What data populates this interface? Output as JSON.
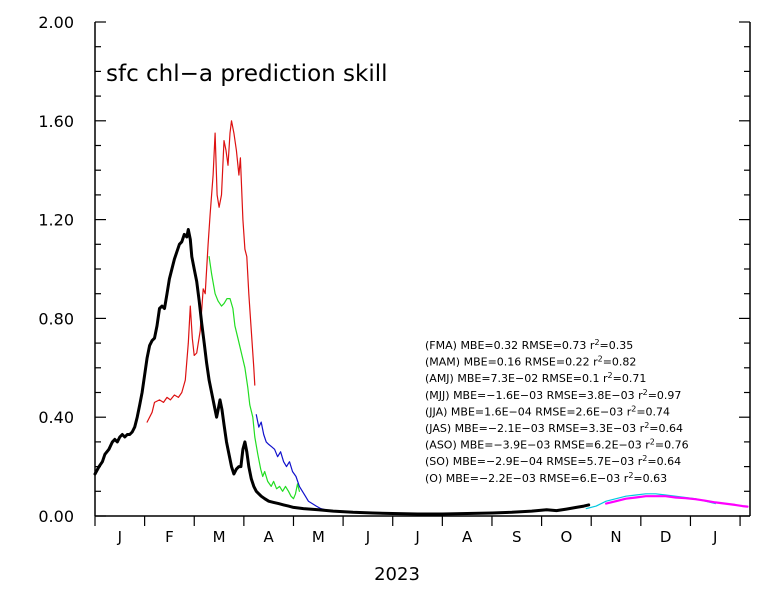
{
  "chart_data": {
    "type": "line",
    "title": "sfc chl−a prediction skill",
    "xlabel": "2023",
    "ylabel": "",
    "ylim": [
      0,
      2
    ],
    "yticks": [
      "0.00",
      "0.40",
      "0.80",
      "1.20",
      "1.60",
      "2.00"
    ],
    "xlim": [
      0,
      13.2
    ],
    "month_labels": [
      "J",
      "F",
      "M",
      "A",
      "M",
      "J",
      "J",
      "A",
      "S",
      "O",
      "N",
      "D",
      "J"
    ],
    "grid": false,
    "stats": [
      {
        "period": "(FMA)",
        "mbe": "MBE=0.32",
        "rmse": "RMSE=0.73",
        "r2": "=0.35"
      },
      {
        "period": "(MAM)",
        "mbe": "MBE=0.16",
        "rmse": "RMSE=0.22",
        "r2": "=0.82"
      },
      {
        "period": "(AMJ)",
        "mbe": "MBE=7.3E−02",
        "rmse": "RMSE=0.1",
        "r2": "=0.71"
      },
      {
        "period": "(MJJ)",
        "mbe": "MBE=−1.6E−03",
        "rmse": "RMSE=3.8E−03",
        "r2": "=0.97"
      },
      {
        "period": "(JJA)",
        "mbe": "MBE=1.6E−04",
        "rmse": "RMSE=2.6E−03",
        "r2": "=0.74"
      },
      {
        "period": "(JAS)",
        "mbe": "MBE=−2.1E−03",
        "rmse": "RMSE=3.3E−03",
        "r2": "=0.64"
      },
      {
        "period": "(ASO)",
        "mbe": "MBE=−3.9E−03",
        "rmse": "RMSE=6.2E−03",
        "r2": "=0.76"
      },
      {
        "period": "(SO)",
        "mbe": "MBE=−2.9E−04",
        "rmse": "RMSE=5.7E−03",
        "r2": "=0.64"
      },
      {
        "period": "(O)",
        "mbe": "MBE=−2.2E−03",
        "rmse": "RMSE=6.E−03",
        "r2": "=0.63"
      }
    ],
    "series": [
      {
        "color": "#dd1111",
        "width": 1.2,
        "points": [
          [
            1.05,
            0.38
          ],
          [
            1.15,
            0.42
          ],
          [
            1.2,
            0.46
          ],
          [
            1.3,
            0.47
          ],
          [
            1.38,
            0.46
          ],
          [
            1.45,
            0.48
          ],
          [
            1.52,
            0.47
          ],
          [
            1.6,
            0.49
          ],
          [
            1.68,
            0.48
          ],
          [
            1.75,
            0.5
          ],
          [
            1.82,
            0.55
          ],
          [
            1.88,
            0.7
          ],
          [
            1.92,
            0.85
          ],
          [
            1.96,
            0.72
          ],
          [
            2.0,
            0.65
          ],
          [
            2.05,
            0.66
          ],
          [
            2.12,
            0.75
          ],
          [
            2.18,
            0.92
          ],
          [
            2.22,
            0.9
          ],
          [
            2.28,
            1.1
          ],
          [
            2.32,
            1.22
          ],
          [
            2.38,
            1.38
          ],
          [
            2.42,
            1.55
          ],
          [
            2.46,
            1.3
          ],
          [
            2.5,
            1.25
          ],
          [
            2.55,
            1.3
          ],
          [
            2.6,
            1.52
          ],
          [
            2.64,
            1.48
          ],
          [
            2.68,
            1.42
          ],
          [
            2.72,
            1.55
          ],
          [
            2.75,
            1.6
          ],
          [
            2.8,
            1.55
          ],
          [
            2.85,
            1.48
          ],
          [
            2.9,
            1.38
          ],
          [
            2.93,
            1.45
          ],
          [
            2.98,
            1.2
          ],
          [
            3.02,
            1.08
          ],
          [
            3.06,
            1.05
          ],
          [
            3.1,
            0.9
          ],
          [
            3.15,
            0.75
          ],
          [
            3.2,
            0.6
          ],
          [
            3.22,
            0.53
          ]
        ]
      },
      {
        "color": "#22dd22",
        "width": 1.2,
        "points": [
          [
            2.3,
            1.05
          ],
          [
            2.35,
            0.98
          ],
          [
            2.42,
            0.9
          ],
          [
            2.48,
            0.87
          ],
          [
            2.55,
            0.85
          ],
          [
            2.6,
            0.86
          ],
          [
            2.66,
            0.88
          ],
          [
            2.72,
            0.88
          ],
          [
            2.78,
            0.84
          ],
          [
            2.82,
            0.77
          ],
          [
            2.88,
            0.72
          ],
          [
            2.95,
            0.66
          ],
          [
            3.02,
            0.6
          ],
          [
            3.08,
            0.52
          ],
          [
            3.12,
            0.45
          ],
          [
            3.18,
            0.4
          ],
          [
            3.22,
            0.32
          ],
          [
            3.28,
            0.25
          ],
          [
            3.34,
            0.19
          ],
          [
            3.38,
            0.16
          ],
          [
            3.42,
            0.18
          ],
          [
            3.48,
            0.14
          ],
          [
            3.55,
            0.12
          ],
          [
            3.6,
            0.14
          ],
          [
            3.66,
            0.11
          ],
          [
            3.72,
            0.12
          ],
          [
            3.78,
            0.1
          ],
          [
            3.84,
            0.12
          ],
          [
            3.9,
            0.1
          ],
          [
            3.95,
            0.08
          ],
          [
            4.0,
            0.07
          ],
          [
            4.04,
            0.09
          ],
          [
            4.08,
            0.13
          ],
          [
            4.12,
            0.1
          ]
        ]
      },
      {
        "color": "#1111cc",
        "width": 1.2,
        "points": [
          [
            3.25,
            0.41
          ],
          [
            3.3,
            0.36
          ],
          [
            3.35,
            0.38
          ],
          [
            3.4,
            0.33
          ],
          [
            3.45,
            0.3
          ],
          [
            3.5,
            0.29
          ],
          [
            3.56,
            0.28
          ],
          [
            3.62,
            0.27
          ],
          [
            3.68,
            0.24
          ],
          [
            3.74,
            0.26
          ],
          [
            3.8,
            0.22
          ],
          [
            3.86,
            0.2
          ],
          [
            3.92,
            0.22
          ],
          [
            3.98,
            0.18
          ],
          [
            4.05,
            0.16
          ],
          [
            4.12,
            0.12
          ],
          [
            4.18,
            0.1
          ],
          [
            4.24,
            0.08
          ],
          [
            4.3,
            0.06
          ],
          [
            4.38,
            0.05
          ],
          [
            4.46,
            0.04
          ],
          [
            4.55,
            0.03
          ],
          [
            4.65,
            0.025
          ],
          [
            4.8,
            0.02
          ],
          [
            5.0,
            0.015
          ]
        ]
      },
      {
        "color": "#00c8e0",
        "width": 1.2,
        "points": [
          [
            9.9,
            0.03
          ],
          [
            10.1,
            0.04
          ],
          [
            10.3,
            0.06
          ],
          [
            10.5,
            0.07
          ],
          [
            10.7,
            0.08
          ],
          [
            10.9,
            0.085
          ],
          [
            11.1,
            0.09
          ],
          [
            11.3,
            0.09
          ],
          [
            11.5,
            0.085
          ],
          [
            11.7,
            0.08
          ],
          [
            11.9,
            0.075
          ],
          [
            12.1,
            0.07
          ],
          [
            12.3,
            0.06
          ],
          [
            12.5,
            0.05
          ]
        ]
      },
      {
        "color": "#ff00ff",
        "width": 2.2,
        "points": [
          [
            10.3,
            0.05
          ],
          [
            10.5,
            0.06
          ],
          [
            10.7,
            0.07
          ],
          [
            10.9,
            0.075
          ],
          [
            11.1,
            0.08
          ],
          [
            11.3,
            0.08
          ],
          [
            11.5,
            0.08
          ],
          [
            11.7,
            0.075
          ],
          [
            11.9,
            0.072
          ],
          [
            12.1,
            0.068
          ],
          [
            12.3,
            0.062
          ],
          [
            12.5,
            0.055
          ],
          [
            12.7,
            0.05
          ],
          [
            12.9,
            0.045
          ],
          [
            13.05,
            0.04
          ],
          [
            13.15,
            0.038
          ]
        ]
      },
      {
        "color": "#000000",
        "width": 3,
        "points": [
          [
            0.0,
            0.17
          ],
          [
            0.08,
            0.2
          ],
          [
            0.15,
            0.22
          ],
          [
            0.2,
            0.25
          ],
          [
            0.28,
            0.27
          ],
          [
            0.35,
            0.3
          ],
          [
            0.4,
            0.31
          ],
          [
            0.45,
            0.3
          ],
          [
            0.5,
            0.32
          ],
          [
            0.55,
            0.33
          ],
          [
            0.6,
            0.32
          ],
          [
            0.65,
            0.33
          ],
          [
            0.7,
            0.33
          ],
          [
            0.75,
            0.34
          ],
          [
            0.8,
            0.36
          ],
          [
            0.85,
            0.4
          ],
          [
            0.9,
            0.45
          ],
          [
            0.95,
            0.5
          ],
          [
            1.0,
            0.57
          ],
          [
            1.05,
            0.64
          ],
          [
            1.1,
            0.69
          ],
          [
            1.15,
            0.71
          ],
          [
            1.2,
            0.72
          ],
          [
            1.25,
            0.77
          ],
          [
            1.3,
            0.84
          ],
          [
            1.35,
            0.85
          ],
          [
            1.4,
            0.84
          ],
          [
            1.45,
            0.9
          ],
          [
            1.5,
            0.96
          ],
          [
            1.55,
            1.0
          ],
          [
            1.6,
            1.04
          ],
          [
            1.65,
            1.07
          ],
          [
            1.7,
            1.1
          ],
          [
            1.75,
            1.11
          ],
          [
            1.8,
            1.14
          ],
          [
            1.85,
            1.13
          ],
          [
            1.88,
            1.16
          ],
          [
            1.92,
            1.12
          ],
          [
            1.95,
            1.05
          ],
          [
            2.0,
            1.0
          ],
          [
            2.05,
            0.95
          ],
          [
            2.1,
            0.87
          ],
          [
            2.15,
            0.78
          ],
          [
            2.2,
            0.7
          ],
          [
            2.25,
            0.62
          ],
          [
            2.3,
            0.55
          ],
          [
            2.35,
            0.5
          ],
          [
            2.4,
            0.45
          ],
          [
            2.45,
            0.4
          ],
          [
            2.48,
            0.43
          ],
          [
            2.52,
            0.47
          ],
          [
            2.56,
            0.43
          ],
          [
            2.6,
            0.37
          ],
          [
            2.65,
            0.3
          ],
          [
            2.7,
            0.25
          ],
          [
            2.75,
            0.2
          ],
          [
            2.8,
            0.17
          ],
          [
            2.85,
            0.19
          ],
          [
            2.9,
            0.2
          ],
          [
            2.94,
            0.2
          ],
          [
            2.98,
            0.27
          ],
          [
            3.02,
            0.3
          ],
          [
            3.06,
            0.26
          ],
          [
            3.1,
            0.2
          ],
          [
            3.15,
            0.15
          ],
          [
            3.2,
            0.12
          ],
          [
            3.25,
            0.1
          ],
          [
            3.3,
            0.09
          ],
          [
            3.35,
            0.08
          ],
          [
            3.42,
            0.07
          ],
          [
            3.5,
            0.06
          ],
          [
            3.6,
            0.055
          ],
          [
            3.7,
            0.05
          ],
          [
            3.8,
            0.045
          ],
          [
            3.9,
            0.04
          ],
          [
            4.0,
            0.035
          ],
          [
            4.2,
            0.03
          ],
          [
            4.5,
            0.025
          ],
          [
            4.8,
            0.02
          ],
          [
            5.2,
            0.015
          ],
          [
            5.6,
            0.012
          ],
          [
            6.0,
            0.01
          ],
          [
            6.5,
            0.008
          ],
          [
            7.0,
            0.008
          ],
          [
            7.5,
            0.01
          ],
          [
            8.0,
            0.012
          ],
          [
            8.4,
            0.015
          ],
          [
            8.8,
            0.02
          ],
          [
            9.1,
            0.025
          ],
          [
            9.3,
            0.022
          ],
          [
            9.5,
            0.028
          ],
          [
            9.7,
            0.035
          ],
          [
            9.85,
            0.04
          ],
          [
            9.95,
            0.045
          ]
        ]
      }
    ]
  }
}
